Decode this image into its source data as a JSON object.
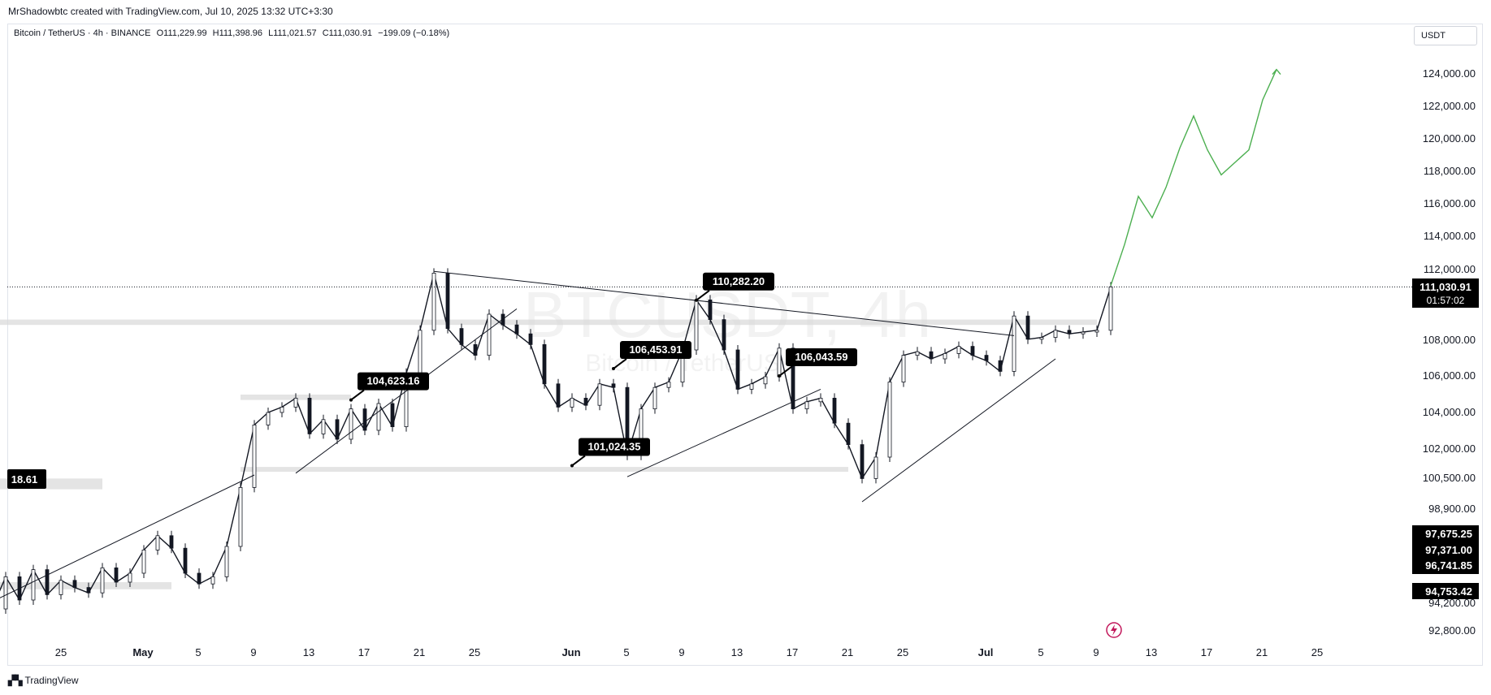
{
  "header": {
    "attribution": "MrShadowbtc created with TradingView.com, Jul 10, 2025 13:32 UTC+3:30"
  },
  "legend": {
    "symbol": "Bitcoin / TetherUS · 4h · BINANCE",
    "open": "O111,229.99",
    "high": "H111,398.96",
    "low": "L111,021.57",
    "close": "C111,030.91",
    "change": "−199.09 (−0.18%)"
  },
  "currency_button": "USDT",
  "watermark": {
    "symbol": "BTCUSDT, 4h",
    "name": "Bitcoin / TetherUS"
  },
  "footer": {
    "brand": "TradingView"
  },
  "colors": {
    "candle": "#131722",
    "projection": "#4caf50",
    "zone": "#d9d9d9",
    "label_bg": "#000000",
    "label_text": "#ffffff",
    "price_line": "#131722",
    "flash_icon": "#c2185b"
  },
  "chart_data": {
    "type": "candlestick",
    "symbol": "Bitcoin / TetherUS",
    "interval": "4h",
    "exchange": "BINANCE",
    "x_ticks": [
      "25",
      "May",
      "5",
      "9",
      "13",
      "17",
      "21",
      "25",
      "Jun",
      "5",
      "9",
      "13",
      "17",
      "21",
      "25",
      "Jul",
      "5",
      "9",
      "13",
      "17",
      "21",
      "25"
    ],
    "y_ticks": [
      "124,000.00",
      "122,000.00",
      "120,000.00",
      "118,000.00",
      "116,000.00",
      "114,000.00",
      "112,000.00",
      "108,000.00",
      "106,000.00",
      "104,000.00",
      "102,000.00",
      "100,500.00",
      "98,900.00",
      "94,200.00",
      "92,800.00"
    ],
    "current_price": {
      "price": "111,030.91",
      "countdown": "01:57:02",
      "value": 111030.91
    },
    "axis_price_labels": [
      "97,675.25",
      "97,371.00",
      "96,741.85",
      "94,753.42"
    ],
    "left_edge_label": "18.61",
    "annotations": [
      {
        "text": "104,623.16",
        "date": "2025-05-16",
        "price": 104700
      },
      {
        "text": "101,024.35",
        "date": "2025-06-01",
        "price": 101024.35
      },
      {
        "text": "106,453.91",
        "date": "2025-06-04",
        "price": 106453.91
      },
      {
        "text": "110,282.20",
        "date": "2025-06-10",
        "price": 110282.2
      },
      {
        "text": "106,043.59",
        "date": "2025-06-16",
        "price": 106043.59
      }
    ],
    "price_path": [
      [
        "2025-04-20",
        93000
      ],
      [
        "2025-04-21",
        94800
      ],
      [
        "2025-04-22",
        93500
      ],
      [
        "2025-04-23",
        95200
      ],
      [
        "2025-04-24",
        93800
      ],
      [
        "2025-04-25",
        94600
      ],
      [
        "2025-04-26",
        94200
      ],
      [
        "2025-04-27",
        93900
      ],
      [
        "2025-04-28",
        95300
      ],
      [
        "2025-04-29",
        94500
      ],
      [
        "2025-04-30",
        95000
      ],
      [
        "2025-05-01",
        96300
      ],
      [
        "2025-05-02",
        97100
      ],
      [
        "2025-05-03",
        96400
      ],
      [
        "2025-05-04",
        95000
      ],
      [
        "2025-05-05",
        94400
      ],
      [
        "2025-05-06",
        94800
      ],
      [
        "2025-05-07",
        96500
      ],
      [
        "2025-05-08",
        99800
      ],
      [
        "2025-05-09",
        103300
      ],
      [
        "2025-05-10",
        104000
      ],
      [
        "2025-05-11",
        104300
      ],
      [
        "2025-05-12",
        104800
      ],
      [
        "2025-05-13",
        102800
      ],
      [
        "2025-05-14",
        103600
      ],
      [
        "2025-05-15",
        102500
      ],
      [
        "2025-05-16",
        104200
      ],
      [
        "2025-05-17",
        103000
      ],
      [
        "2025-05-18",
        104500
      ],
      [
        "2025-05-19",
        103200
      ],
      [
        "2025-05-20",
        106200
      ],
      [
        "2025-05-21",
        108600
      ],
      [
        "2025-05-22",
        111800
      ],
      [
        "2025-05-23",
        108700
      ],
      [
        "2025-05-24",
        107800
      ],
      [
        "2025-05-25",
        107200
      ],
      [
        "2025-05-26",
        109500
      ],
      [
        "2025-05-27",
        108900
      ],
      [
        "2025-05-28",
        108400
      ],
      [
        "2025-05-29",
        107800
      ],
      [
        "2025-05-30",
        105600
      ],
      [
        "2025-05-31",
        104300
      ],
      [
        "2025-06-01",
        104800
      ],
      [
        "2025-06-02",
        104400
      ],
      [
        "2025-06-03",
        105600
      ],
      [
        "2025-06-04",
        105400
      ],
      [
        "2025-06-05",
        101600
      ],
      [
        "2025-06-06",
        104200
      ],
      [
        "2025-06-07",
        105400
      ],
      [
        "2025-06-08",
        105700
      ],
      [
        "2025-06-09",
        107500
      ],
      [
        "2025-06-10",
        110300
      ],
      [
        "2025-06-11",
        109200
      ],
      [
        "2025-06-12",
        107500
      ],
      [
        "2025-06-13",
        105300
      ],
      [
        "2025-06-14",
        105600
      ],
      [
        "2025-06-15",
        106000
      ],
      [
        "2025-06-16",
        107600
      ],
      [
        "2025-06-17",
        104200
      ],
      [
        "2025-06-18",
        104600
      ],
      [
        "2025-06-19",
        104800
      ],
      [
        "2025-06-20",
        103400
      ],
      [
        "2025-06-21",
        102200
      ],
      [
        "2025-06-22",
        100300
      ],
      [
        "2025-06-23",
        101500
      ],
      [
        "2025-06-24",
        105700
      ],
      [
        "2025-06-25",
        107200
      ],
      [
        "2025-06-26",
        107400
      ],
      [
        "2025-06-27",
        107000
      ],
      [
        "2025-06-28",
        107300
      ],
      [
        "2025-06-29",
        107700
      ],
      [
        "2025-06-30",
        107200
      ],
      [
        "2025-07-01",
        106900
      ],
      [
        "2025-07-02",
        106300
      ],
      [
        "2025-07-03",
        109400
      ],
      [
        "2025-07-04",
        108100
      ],
      [
        "2025-07-05",
        108200
      ],
      [
        "2025-07-06",
        108600
      ],
      [
        "2025-07-07",
        108400
      ],
      [
        "2025-07-08",
        108500
      ],
      [
        "2025-07-09",
        108600
      ],
      [
        "2025-07-10",
        111030.91
      ]
    ],
    "projection": [
      [
        "2025-07-10",
        111100
      ],
      [
        "2025-07-11",
        113400
      ],
      [
        "2025-07-12",
        116100
      ],
      [
        "2025-07-13",
        114900
      ],
      [
        "2025-07-14",
        116600
      ],
      [
        "2025-07-15",
        118800
      ],
      [
        "2025-07-16",
        120600
      ],
      [
        "2025-07-17",
        118700
      ],
      [
        "2025-07-18",
        117300
      ],
      [
        "2025-07-19",
        118000
      ],
      [
        "2025-07-20",
        118700
      ],
      [
        "2025-07-21",
        121500
      ],
      [
        "2025-07-22",
        123200
      ]
    ],
    "horizontal_zones": [
      {
        "from": "2025-04-20",
        "to": "2025-07-09",
        "low": 108900,
        "high": 109200
      },
      {
        "from": "2025-05-08",
        "to": "2025-06-21",
        "low": 100700,
        "high": 100950
      },
      {
        "from": "2025-05-08",
        "to": "2025-05-16",
        "low": 104700,
        "high": 105000
      },
      {
        "from": "2025-04-20",
        "to": "2025-04-28",
        "low": 99700,
        "high": 100300
      },
      {
        "from": "2025-04-20",
        "to": "2025-05-03",
        "low": 94100,
        "high": 94500
      }
    ],
    "trendlines": [
      {
        "from": [
          "2025-05-22",
          111900
        ],
        "to": [
          "2025-07-03",
          108300
        ]
      },
      {
        "from": [
          "2025-05-12",
          100600
        ],
        "to": [
          "2025-05-28",
          109800
        ]
      },
      {
        "from": [
          "2025-06-05",
          100400
        ],
        "to": [
          "2025-06-19",
          105300
        ]
      },
      {
        "from": [
          "2025-06-22",
          99000
        ],
        "to": [
          "2025-07-06",
          107000
        ]
      },
      {
        "from": [
          "2025-04-20",
          93400
        ],
        "to": [
          "2025-05-09",
          100500
        ]
      }
    ]
  }
}
